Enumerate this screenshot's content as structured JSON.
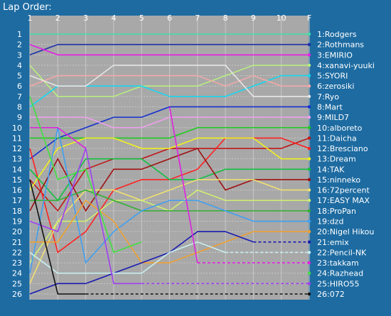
{
  "chart_data": {
    "type": "line",
    "title": "Lap Order:",
    "x_labels": [
      "1",
      "2",
      "3",
      "4",
      "5",
      "6",
      "7",
      "8",
      "9",
      "10",
      "F"
    ],
    "positions": [
      "1",
      "2",
      "3",
      "4",
      "5",
      "6",
      "7",
      "8",
      "9",
      "10",
      "11",
      "12",
      "13",
      "14",
      "15",
      "16",
      "17",
      "18",
      "19",
      "20",
      "21",
      "22",
      "23",
      "24",
      "25",
      "26"
    ],
    "ylim": [
      1,
      26
    ],
    "y_inverted": true,
    "grid": true,
    "background_color": "#a8a8a8",
    "grid_color": "#c8c8c8",
    "series": [
      {
        "name": "1:Rodgers",
        "label": "1:Rodgers",
        "color": "#3be0a8",
        "values": [
          1,
          1,
          1,
          1,
          1,
          1,
          1,
          1,
          1,
          1,
          1
        ],
        "dash_from": null
      },
      {
        "name": "2:Rothmans",
        "label": "2:Rothmans",
        "color": "#1b2fa8",
        "values": [
          3,
          2,
          2,
          2,
          2,
          2,
          2,
          2,
          2,
          2,
          2
        ],
        "dash_from": null
      },
      {
        "name": "3:EMIRIO",
        "label": "3:EMIRIO",
        "color": "#e61ee6",
        "values": [
          2,
          3,
          3,
          3,
          3,
          3,
          3,
          3,
          3,
          3,
          3
        ],
        "dash_from": null
      },
      {
        "name": "4:xanavi-yuuki",
        "label": "4:xanavi-yuuki",
        "color": "#b8ee80",
        "values": [
          4,
          7,
          7,
          7,
          6,
          6,
          6,
          5,
          4,
          4,
          4
        ],
        "dash_from": null
      },
      {
        "name": "5:SYORI",
        "label": "5:SYORI",
        "color": "#12d8f0",
        "values": [
          8,
          6,
          6,
          6,
          6,
          7,
          7,
          7,
          6,
          5,
          5
        ],
        "dash_from": null
      },
      {
        "name": "6:zerosiki",
        "label": "6:zerosiki",
        "color": "#f5a8a8",
        "values": [
          6,
          5,
          5,
          5,
          5,
          5,
          5,
          6,
          5,
          6,
          6
        ],
        "dash_from": null
      },
      {
        "name": "7:Ryo",
        "label": "7:Ryo",
        "color": "#e6e6e6",
        "values": [
          5,
          6,
          6,
          4,
          4,
          4,
          4,
          4,
          7,
          7,
          7
        ],
        "dash_from": null
      },
      {
        "name": "8:Mart",
        "label": "8:Mart",
        "color": "#1330d0",
        "values": [
          13,
          11,
          10,
          9,
          9,
          8,
          8,
          8,
          8,
          8,
          8
        ],
        "dash_from": null
      },
      {
        "name": "9:MILD7",
        "label": "9:MILD7",
        "color": "#f0a0f0",
        "values": [
          9,
          9,
          9,
          10,
          10,
          9,
          9,
          9,
          9,
          9,
          9
        ],
        "dash_from": null
      },
      {
        "name": "10:alboreto",
        "label": "10:alboreto",
        "color": "#1ecb1e",
        "values": [
          11,
          11,
          11,
          11,
          11,
          11,
          10,
          10,
          10,
          10,
          10
        ],
        "dash_from": null
      },
      {
        "name": "11:Daicha",
        "label": "11:Daicha",
        "color": "#c01818",
        "values": [
          15,
          18,
          14,
          13,
          13,
          12,
          12,
          12,
          12,
          12,
          11
        ],
        "dash_from": null
      },
      {
        "name": "12:Bresciano",
        "label": "12:Bresciano",
        "color": "#ff2020",
        "values": [
          12,
          22,
          20,
          16,
          15,
          15,
          14,
          11,
          11,
          11,
          12
        ],
        "dash_from": null
      },
      {
        "name": "13:Dream",
        "label": "13:Dream",
        "color": "#f0f020",
        "values": [
          16,
          12,
          11,
          11,
          12,
          12,
          11,
          11,
          11,
          13,
          13
        ],
        "dash_from": null
      },
      {
        "name": "14:TAK",
        "label": "14:TAK",
        "color": "#12c040",
        "values": [
          14,
          17,
          13,
          13,
          13,
          15,
          15,
          14,
          14,
          14,
          14
        ],
        "dash_from": null
      },
      {
        "name": "15:ninneko",
        "label": "15:ninneko",
        "color": "#a01010",
        "values": [
          18,
          13,
          18,
          14,
          14,
          13,
          12,
          16,
          15,
          15,
          15
        ],
        "dash_from": null
      },
      {
        "name": "16:72percent",
        "label": "16:72percent",
        "color": "#f0e070",
        "values": [
          25,
          19,
          16,
          16,
          17,
          16,
          15,
          15,
          15,
          16,
          16
        ],
        "dash_from": null
      },
      {
        "name": "17:EASY MAX",
        "label": "17:EASY MAX",
        "color": "#d0f070",
        "values": [
          23,
          19,
          19,
          17,
          17,
          18,
          16,
          17,
          17,
          17,
          17
        ],
        "dash_from": null
      },
      {
        "name": "18:ProPan",
        "label": "18:ProPan",
        "color": "#30b030",
        "values": [
          17,
          17,
          16,
          17,
          18,
          18,
          18,
          18,
          18,
          18,
          18
        ],
        "dash_from": null
      },
      {
        "name": "19:dzd",
        "label": "19:dzd",
        "color": "#3f9ff0",
        "values": [
          24,
          10,
          23,
          20,
          18,
          17,
          17,
          18,
          19,
          19,
          19
        ],
        "dash_from": null
      },
      {
        "name": "20:Nigel Hikou",
        "label": "20:Nigel Hikou",
        "color": "#f0a030",
        "values": [
          21,
          21,
          17,
          19,
          23,
          23,
          22,
          21,
          20,
          20,
          20
        ],
        "dash_from": null
      },
      {
        "name": "21:emix",
        "label": "21:emix",
        "color": "#1a1ab0",
        "values": [
          26,
          25,
          25,
          24,
          23,
          22,
          20,
          20,
          21,
          21,
          21
        ],
        "dash_from": 8
      },
      {
        "name": "22:Pencil-NK",
        "label": "22:Pencil-NK",
        "color": "#c8f0f0",
        "values": [
          22,
          24,
          24,
          24,
          24,
          22,
          21,
          22,
          22,
          22,
          22
        ],
        "dash_from": 7
      },
      {
        "name": "23:takkam",
        "label": "23:takkam",
        "color": "#e020e0",
        "values": [
          10,
          10,
          12,
          null,
          null,
          8,
          23,
          23,
          23,
          23,
          23
        ],
        "dash_from": 6
      },
      {
        "name": "24:Razhead",
        "label": "24:Razhead",
        "color": "#40e040",
        "values": [
          7,
          15,
          14,
          22,
          21,
          null,
          null,
          null,
          null,
          null,
          24
        ],
        "dash_from": 5
      },
      {
        "name": "25:HIRO55",
        "label": "25:HIRO55",
        "color": "#a040f0",
        "values": [
          19,
          20,
          12,
          25,
          25,
          25,
          25,
          25,
          25,
          25,
          25
        ],
        "dash_from": 4
      },
      {
        "name": "26:072",
        "label": "26:072",
        "color": "#101010",
        "values": [
          15,
          26,
          26,
          26,
          26,
          26,
          26,
          26,
          26,
          26,
          26
        ],
        "dash_from": 2
      }
    ]
  }
}
